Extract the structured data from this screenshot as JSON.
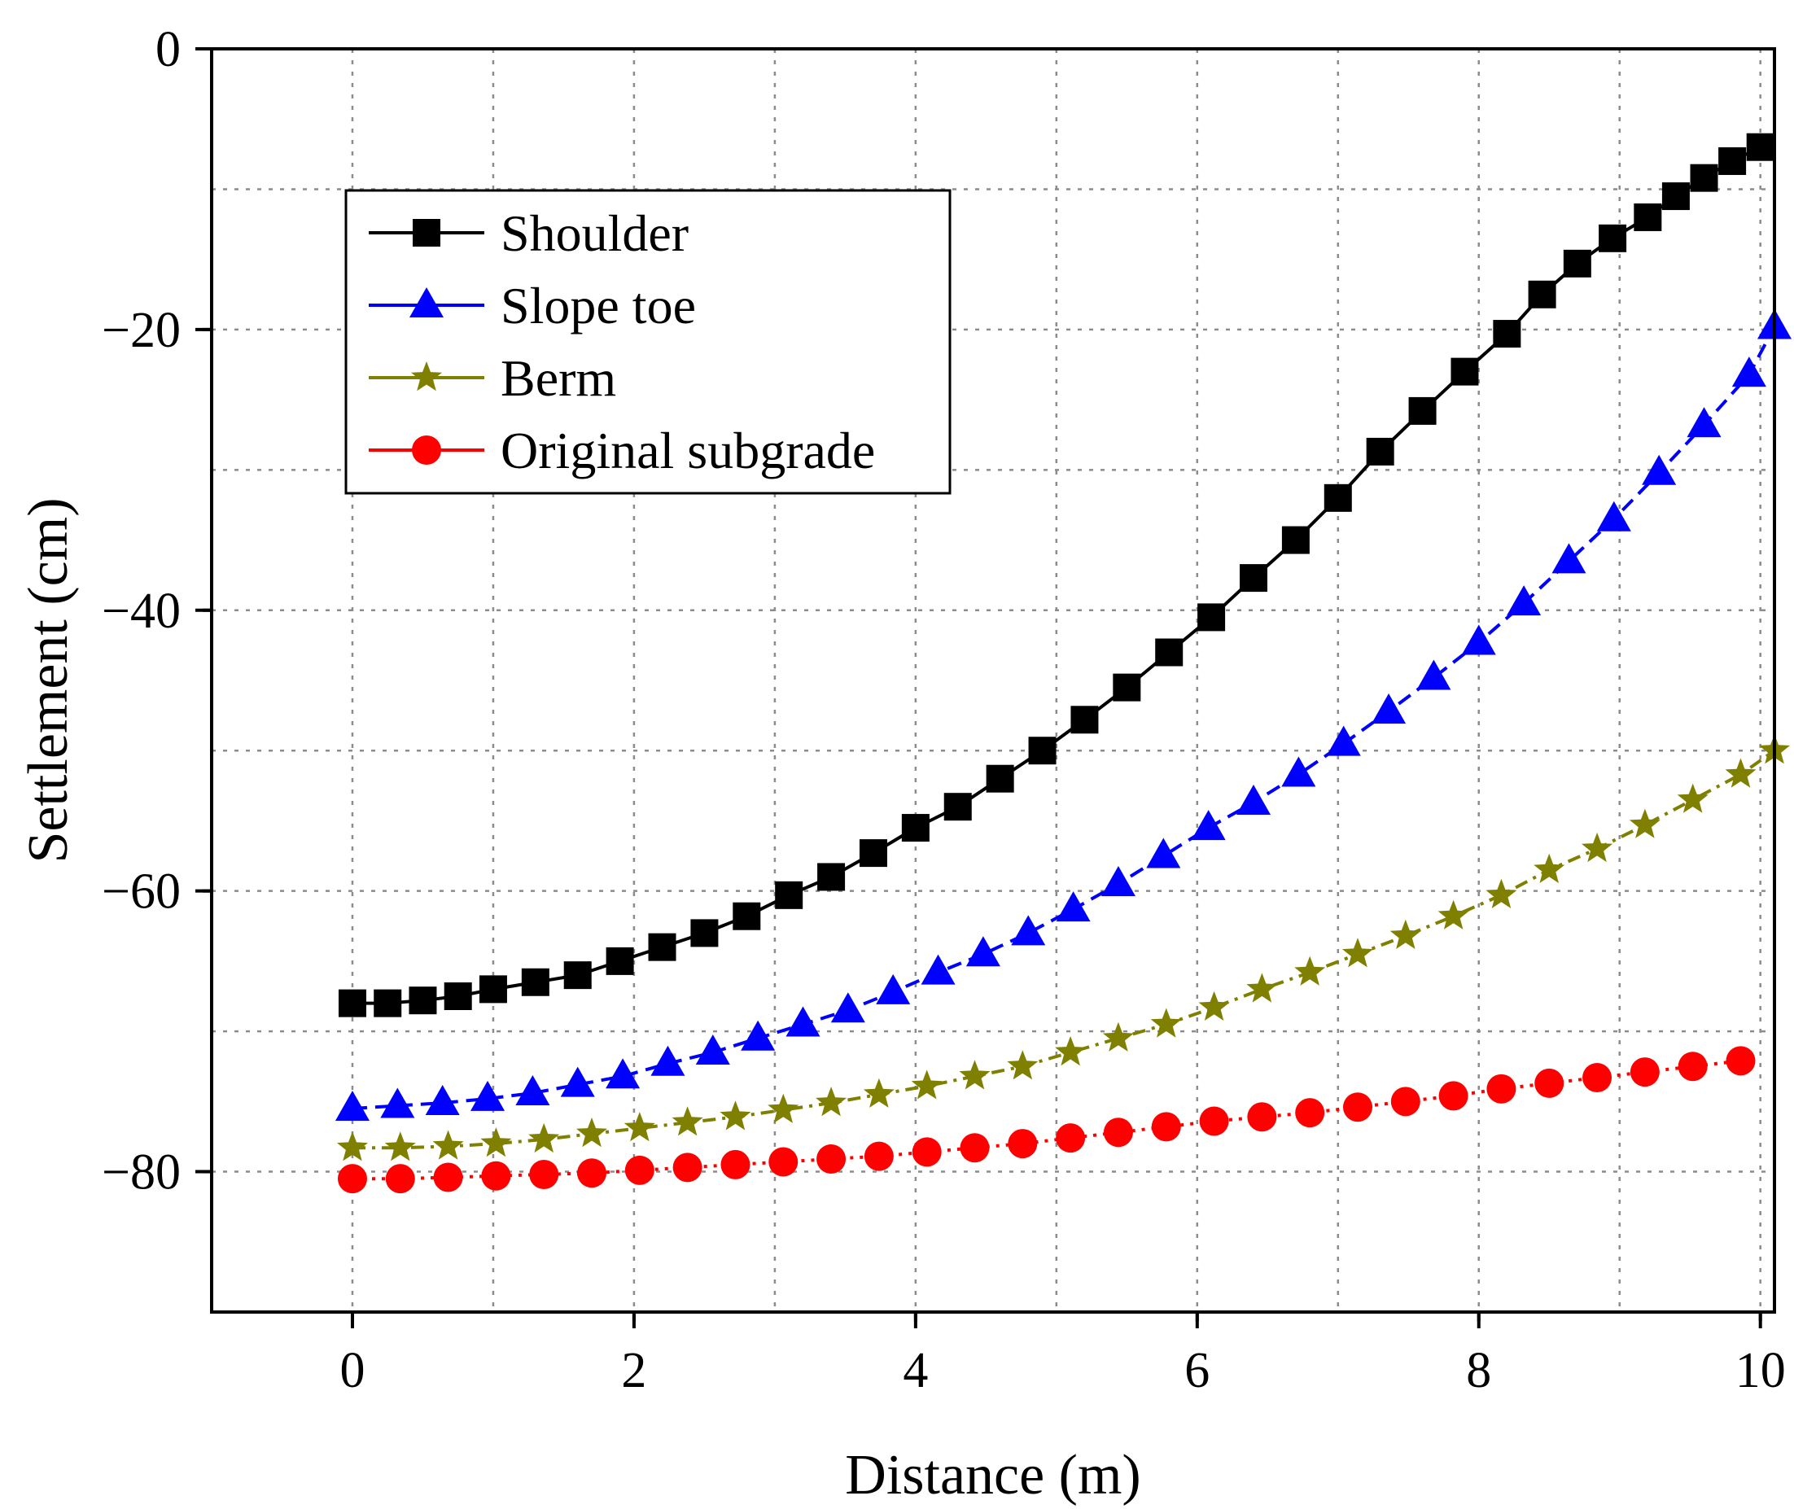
{
  "chart_data": {
    "type": "line",
    "title": "",
    "xlabel": "Distance (m)",
    "ylabel": "Settlement (cm)",
    "xlim": [
      -1,
      10.1
    ],
    "ylim": [
      -90,
      0
    ],
    "xticks": [
      0,
      2,
      4,
      6,
      8,
      10
    ],
    "xtick_labels": [
      "0",
      "2",
      "4",
      "6",
      "8",
      "10"
    ],
    "yticks": [
      0,
      -20,
      -40,
      -60,
      -80
    ],
    "ytick_labels": [
      "0",
      "−20",
      "−40",
      "−60",
      "−80"
    ],
    "grid": true,
    "legend_position": "top-left",
    "series": [
      {
        "name": "Shoulder",
        "color": "#000000",
        "marker": "square",
        "line_style": "solid",
        "x": [
          0,
          0.25,
          0.5,
          0.75,
          1.0,
          1.3,
          1.6,
          1.9,
          2.2,
          2.5,
          2.8,
          3.1,
          3.4,
          3.7,
          4.0,
          4.3,
          4.6,
          4.9,
          5.2,
          5.5,
          5.8,
          6.1,
          6.4,
          6.7,
          7.0,
          7.3,
          7.6,
          7.9,
          8.2,
          8.45,
          8.7,
          8.95,
          9.2,
          9.4,
          9.6,
          9.8,
          10.0
        ],
        "y": [
          -68,
          -68,
          -67.8,
          -67.5,
          -67,
          -66.5,
          -66,
          -65,
          -64,
          -63,
          -61.8,
          -60.3,
          -59,
          -57.3,
          -55.5,
          -54,
          -52,
          -50,
          -47.8,
          -45.5,
          -43,
          -40.5,
          -37.7,
          -35,
          -32,
          -28.7,
          -25.8,
          -23,
          -20.3,
          -17.5,
          -15.3,
          -13.5,
          -12,
          -10.5,
          -9.2,
          -8,
          -7
        ]
      },
      {
        "name": "Slope toe",
        "color": "#0000ff",
        "marker": "triangle",
        "line_style": "dashed",
        "x": [
          0,
          0.32,
          0.64,
          0.96,
          1.28,
          1.6,
          1.92,
          2.24,
          2.56,
          2.88,
          3.2,
          3.52,
          3.84,
          4.16,
          4.48,
          4.8,
          5.12,
          5.44,
          5.76,
          6.08,
          6.4,
          6.72,
          7.04,
          7.36,
          7.68,
          8.0,
          8.32,
          8.64,
          8.96,
          9.28,
          9.6,
          9.92,
          10.1
        ],
        "y": [
          -75.5,
          -75.3,
          -75.1,
          -74.8,
          -74.4,
          -73.8,
          -73.2,
          -72.3,
          -71.5,
          -70.5,
          -69.5,
          -68.5,
          -67.2,
          -65.8,
          -64.5,
          -63,
          -61.3,
          -59.5,
          -57.5,
          -55.5,
          -53.7,
          -51.7,
          -49.5,
          -47.2,
          -44.8,
          -42.3,
          -39.5,
          -36.5,
          -33.5,
          -30.2,
          -26.8,
          -23.2,
          -19.8
        ]
      },
      {
        "name": "Berm",
        "color": "#808000",
        "marker": "star",
        "line_style": "dash-dot",
        "x": [
          0,
          0.34,
          0.68,
          1.02,
          1.36,
          1.7,
          2.04,
          2.38,
          2.72,
          3.06,
          3.4,
          3.74,
          4.08,
          4.42,
          4.76,
          5.1,
          5.44,
          5.78,
          6.12,
          6.46,
          6.8,
          7.14,
          7.48,
          7.82,
          8.16,
          8.5,
          8.84,
          9.18,
          9.52,
          9.86,
          10.1
        ],
        "y": [
          -78.3,
          -78.3,
          -78.2,
          -78,
          -77.7,
          -77.3,
          -76.9,
          -76.5,
          -76.1,
          -75.6,
          -75.1,
          -74.5,
          -73.9,
          -73.2,
          -72.5,
          -71.5,
          -70.5,
          -69.5,
          -68.3,
          -67,
          -65.8,
          -64.5,
          -63.2,
          -61.8,
          -60.3,
          -58.5,
          -57,
          -55.3,
          -53.5,
          -51.7,
          -50
        ]
      },
      {
        "name": "Original subgrade",
        "color": "#ff0000",
        "marker": "circle",
        "line_style": "dotted",
        "x": [
          0,
          0.34,
          0.68,
          1.02,
          1.36,
          1.7,
          2.04,
          2.38,
          2.72,
          3.06,
          3.4,
          3.74,
          4.08,
          4.42,
          4.76,
          5.1,
          5.44,
          5.78,
          6.12,
          6.46,
          6.8,
          7.14,
          7.48,
          7.82,
          8.16,
          8.5,
          8.84,
          9.18,
          9.52,
          9.86
        ],
        "y": [
          -80.5,
          -80.5,
          -80.4,
          -80.3,
          -80.2,
          -80.1,
          -79.9,
          -79.7,
          -79.5,
          -79.3,
          -79.1,
          -78.9,
          -78.6,
          -78.3,
          -78,
          -77.6,
          -77.2,
          -76.8,
          -76.4,
          -76.1,
          -75.8,
          -75.4,
          -75,
          -74.6,
          -74.1,
          -73.7,
          -73.3,
          -72.9,
          -72.5,
          -72.1
        ]
      }
    ]
  }
}
